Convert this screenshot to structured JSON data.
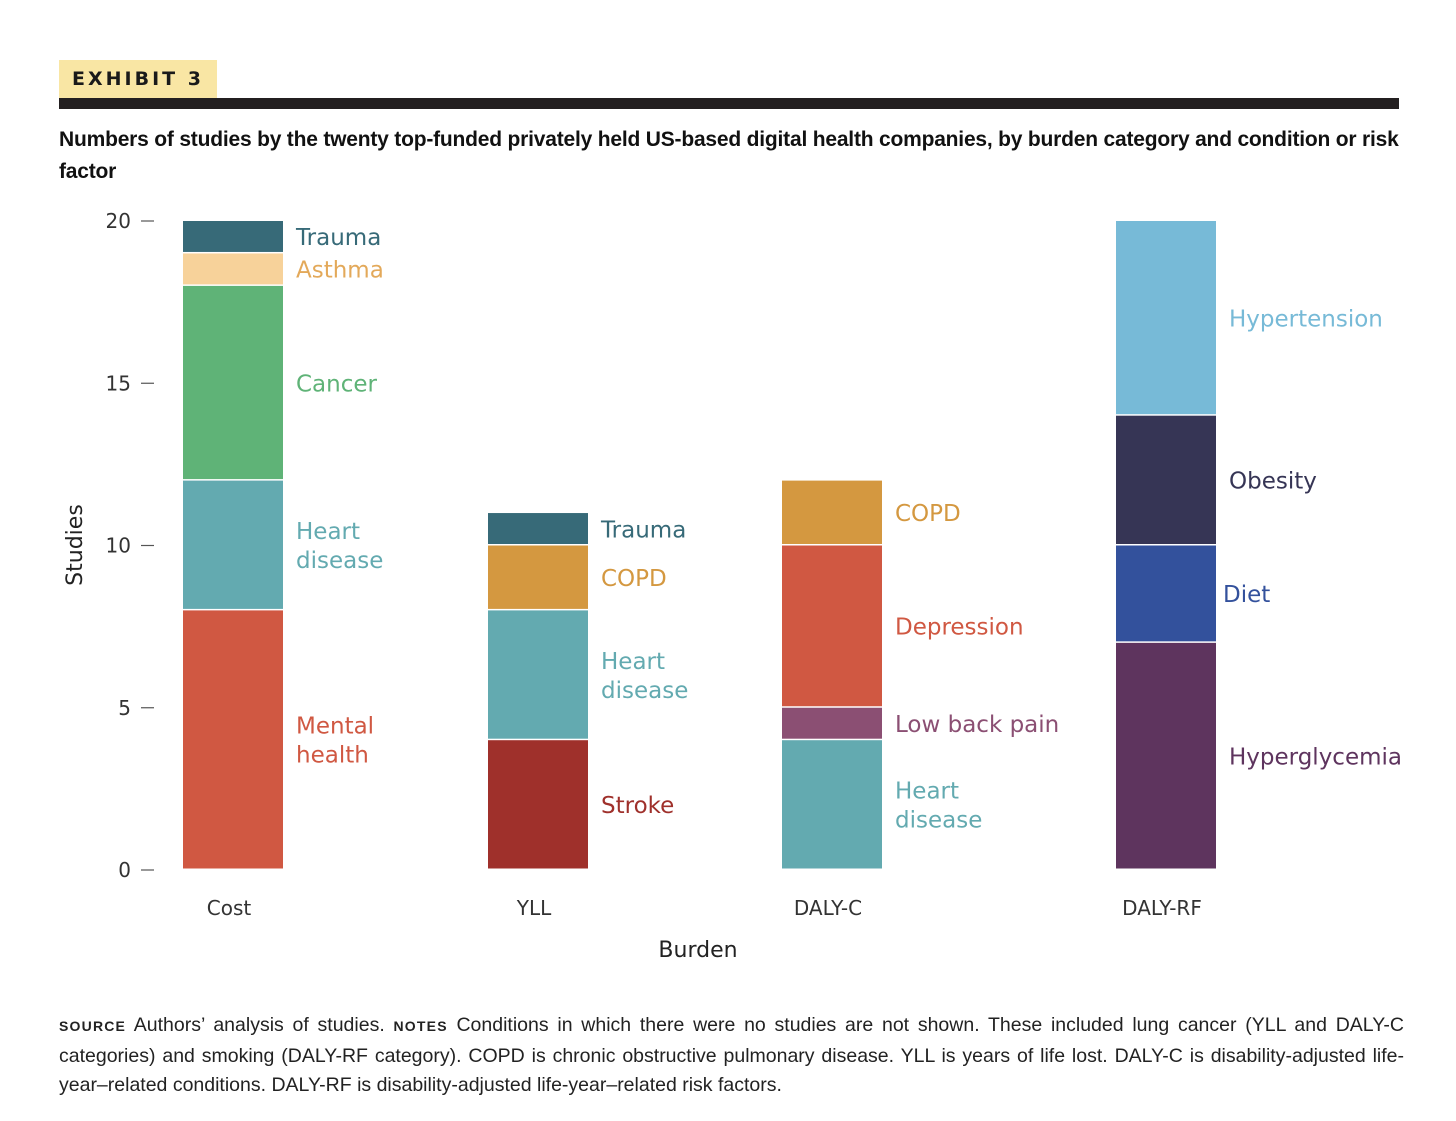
{
  "exhibit_label": "EXHIBIT 3",
  "title": "Numbers of studies by the twenty top-funded privately held US-based digital health companies, by burden category and condition or risk factor",
  "chart_data": {
    "type": "bar",
    "stacked": true,
    "xlabel": "Burden",
    "ylabel": "Studies",
    "ylim": [
      0,
      20
    ],
    "yticks": [
      0,
      5,
      10,
      15,
      20
    ],
    "categories": [
      "Cost",
      "YLL",
      "DALY-C",
      "DALY-RF"
    ],
    "stacks": [
      {
        "category": "Cost",
        "segments": [
          {
            "name": "Mental health",
            "lines": [
              "Mental",
              "health"
            ],
            "value": 8,
            "color": "#d05842"
          },
          {
            "name": "Heart disease",
            "lines": [
              "Heart",
              "disease"
            ],
            "value": 4,
            "color": "#63aab0"
          },
          {
            "name": "Cancer",
            "lines": [
              "Cancer"
            ],
            "value": 6,
            "color": "#5fb377"
          },
          {
            "name": "Asthma",
            "lines": [
              "Asthma"
            ],
            "value": 1,
            "color": "#f7d29a",
            "text_color": "#e3a95a"
          },
          {
            "name": "Trauma",
            "lines": [
              "Trauma"
            ],
            "value": 1,
            "color": "#376a78"
          }
        ]
      },
      {
        "category": "YLL",
        "segments": [
          {
            "name": "Stroke",
            "lines": [
              "Stroke"
            ],
            "value": 4,
            "color": "#9f302b"
          },
          {
            "name": "Heart disease",
            "lines": [
              "Heart",
              "disease"
            ],
            "value": 4,
            "color": "#63aab0"
          },
          {
            "name": "COPD",
            "lines": [
              "COPD"
            ],
            "value": 2,
            "color": "#d49840"
          },
          {
            "name": "Trauma",
            "lines": [
              "Trauma"
            ],
            "value": 1,
            "color": "#376a78"
          }
        ]
      },
      {
        "category": "DALY-C",
        "segments": [
          {
            "name": "Heart disease",
            "lines": [
              "Heart",
              "disease"
            ],
            "value": 4,
            "color": "#63aab0"
          },
          {
            "name": "Low back pain",
            "lines": [
              "Low back pain"
            ],
            "value": 1,
            "color": "#8b4f73"
          },
          {
            "name": "Depression",
            "lines": [
              "Depression"
            ],
            "value": 5,
            "color": "#d05842"
          },
          {
            "name": "COPD",
            "lines": [
              "COPD"
            ],
            "value": 2,
            "color": "#d49840"
          }
        ]
      },
      {
        "category": "DALY-RF",
        "segments": [
          {
            "name": "Hyperglycemia",
            "lines": [
              "Hyperglycemia"
            ],
            "value": 7,
            "color": "#5e345e"
          },
          {
            "name": "Diet",
            "lines": [
              "Diet"
            ],
            "value": 3,
            "color": "#33519c"
          },
          {
            "name": "Obesity",
            "lines": [
              "Obesity"
            ],
            "value": 4,
            "color": "#363555"
          },
          {
            "name": "Hypertension",
            "lines": [
              "Hypertension"
            ],
            "value": 6,
            "color": "#77bad7"
          }
        ]
      }
    ]
  },
  "footer": {
    "source_label": "Source",
    "source_text": " Authors’ analysis of studies. ",
    "notes_label": "Notes",
    "notes_text": " Conditions in which there were no studies are not shown. These included lung cancer (YLL and DALY-C categories) and smoking (DALY-RF category). COPD is chronic obstructive pulmonary disease. YLL is years of life lost. DALY-C is disability-adjusted life-year–related conditions. DALY-RF is disability-adjusted life-year–related risk factors."
  }
}
